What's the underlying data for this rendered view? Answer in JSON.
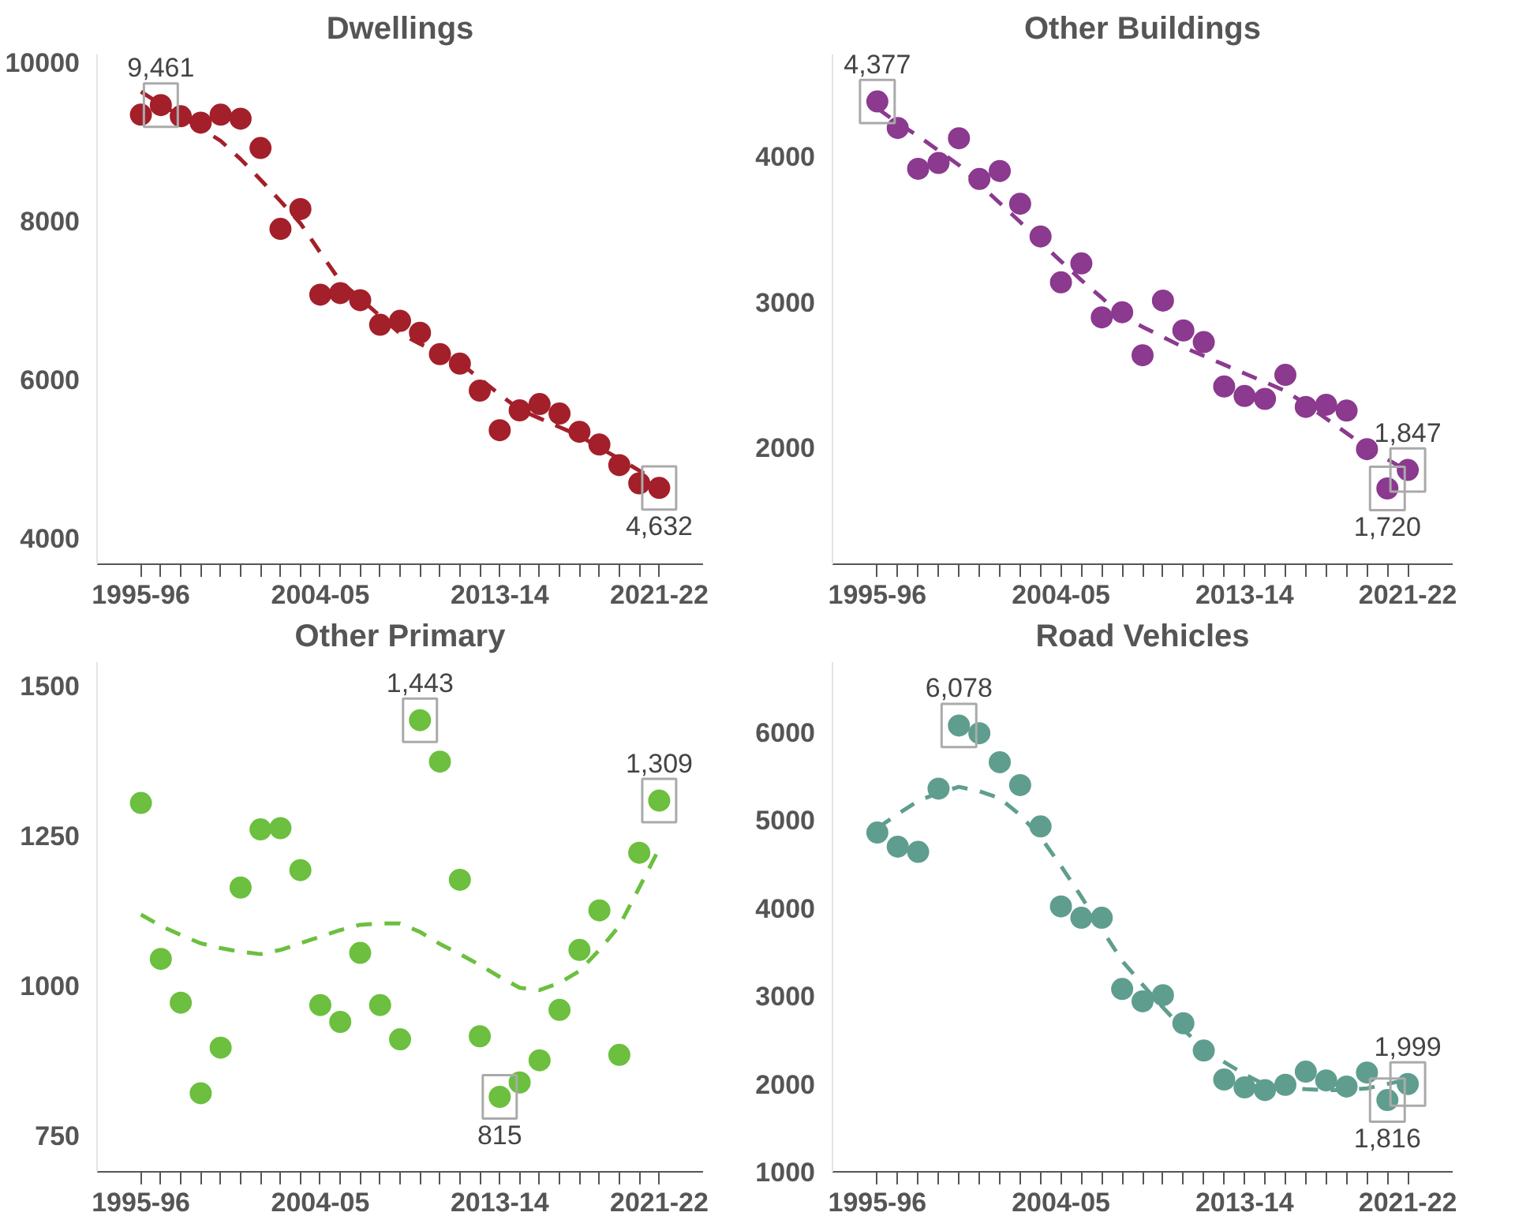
{
  "chart_data": [
    {
      "type": "scatter",
      "title": "Dwellings",
      "categories": [
        "1995-96",
        null,
        null,
        null,
        null,
        null,
        null,
        null,
        null,
        "2004-05",
        null,
        null,
        null,
        null,
        null,
        null,
        null,
        null,
        "2013-14",
        null,
        null,
        null,
        null,
        null,
        null,
        null,
        "2021-22"
      ],
      "ylim": [
        3670,
        10100
      ],
      "yticks": [
        4000,
        6000,
        8000,
        10000
      ],
      "grid": false,
      "marker": "circle",
      "series": [
        {
          "color": "#a3202a",
          "values": [
            9340,
            9461,
            9320,
            9240,
            9340,
            9290,
            8920,
            7900,
            8150,
            7070,
            7090,
            7000,
            6690,
            6740,
            6590,
            6320,
            6200,
            5860,
            5360,
            5610,
            5690,
            5570,
            5340,
            5180,
            4920,
            4690,
            4632
          ]
        },
        {
          "type": "line",
          "line_style": "dashed",
          "marker": "none",
          "color": "#a3202a",
          "values": [
            9630,
            9470,
            9320,
            9170,
            9010,
            8780,
            8520,
            8250,
            7970,
            7600,
            7240,
            7020,
            6800,
            6580,
            6450,
            6330,
            6210,
            6010,
            5810,
            5620,
            5510,
            5400,
            5290,
            5140,
            5000,
            4850,
            4700
          ]
        }
      ],
      "annotations": [
        {
          "text": "9,461",
          "y": 9461
        },
        {
          "text": "4,632",
          "x": "2021-22",
          "y": 4632
        }
      ]
    },
    {
      "type": "scatter",
      "title": "Other Buildings",
      "categories": [
        "1995-96",
        null,
        null,
        null,
        null,
        null,
        null,
        null,
        null,
        "2004-05",
        null,
        null,
        null,
        null,
        null,
        null,
        null,
        null,
        "2013-14",
        null,
        null,
        null,
        null,
        null,
        null,
        null,
        "2021-22"
      ],
      "ylim": [
        1200,
        4700
      ],
      "yticks": [
        2000,
        3000,
        4000
      ],
      "grid": false,
      "marker": "circle",
      "series": [
        {
          "color": "#8b3a8f",
          "values": [
            4377,
            4195,
            3915,
            3955,
            4125,
            3845,
            3900,
            3675,
            3450,
            3135,
            3265,
            2895,
            2930,
            2635,
            3010,
            2805,
            2725,
            2420,
            2355,
            2335,
            2500,
            2280,
            2295,
            2255,
            1990,
            1720,
            1847
          ]
        },
        {
          "type": "line",
          "line_style": "dashed",
          "marker": "none",
          "color": "#8b3a8f",
          "values": [
            4330,
            4230,
            4140,
            4040,
            3940,
            3810,
            3680,
            3550,
            3410,
            3280,
            3150,
            3030,
            2900,
            2830,
            2760,
            2690,
            2630,
            2570,
            2510,
            2450,
            2390,
            2300,
            2200,
            2100,
            2000,
            1920,
            1840
          ]
        }
      ],
      "annotations": [
        {
          "text": "4,377",
          "x": "1995-96",
          "y": 4377
        },
        {
          "text": "1,720",
          "y": 1720
        },
        {
          "text": "1,847",
          "x": "2021-22",
          "y": 1847
        }
      ]
    },
    {
      "type": "scatter",
      "title": "Other Primary",
      "categories": [
        "1995-96",
        null,
        null,
        null,
        null,
        null,
        null,
        null,
        null,
        "2004-05",
        null,
        null,
        null,
        null,
        null,
        null,
        null,
        null,
        "2013-14",
        null,
        null,
        null,
        null,
        null,
        null,
        null,
        "2021-22"
      ],
      "ylim": [
        690,
        1540
      ],
      "yticks": [
        750,
        1000,
        1250,
        1500
      ],
      "grid": false,
      "marker": "circle",
      "series": [
        {
          "color": "#6cbf3f",
          "values": [
            1305,
            1045,
            972,
            821,
            897,
            1164,
            1261,
            1263,
            1193,
            968,
            940,
            1055,
            968,
            911,
            1443,
            1374,
            1177,
            916,
            815,
            839,
            876,
            960,
            1060,
            1126,
            885,
            1222,
            1309
          ]
        },
        {
          "type": "line",
          "line_style": "dashed",
          "marker": "none",
          "color": "#6cbf3f",
          "values": [
            1119,
            1100,
            1085,
            1071,
            1063,
            1057,
            1053,
            1060,
            1071,
            1082,
            1093,
            1102,
            1104,
            1104,
            1090,
            1070,
            1053,
            1035,
            1015,
            997,
            993,
            1005,
            1025,
            1060,
            1100,
            1164,
            1229
          ]
        }
      ],
      "annotations": [
        {
          "text": "1,443",
          "y": 1443
        },
        {
          "text": "815",
          "x": "2013-14",
          "y": 815
        },
        {
          "text": "1,309",
          "x": "2021-22",
          "y": 1309
        }
      ]
    },
    {
      "type": "scatter",
      "title": "Road Vehicles",
      "categories": [
        "1995-96",
        null,
        null,
        null,
        null,
        null,
        null,
        null,
        null,
        "2004-05",
        null,
        null,
        null,
        null,
        null,
        null,
        null,
        null,
        "2013-14",
        null,
        null,
        null,
        null,
        null,
        null,
        null,
        "2021-22"
      ],
      "ylim": [
        1000,
        6800
      ],
      "yticks": [
        1000,
        2000,
        3000,
        4000,
        5000,
        6000
      ],
      "grid": false,
      "marker": "circle",
      "series": [
        {
          "color": "#5f9e8f",
          "values": [
            4860,
            4700,
            4640,
            5360,
            6078,
            5990,
            5660,
            5400,
            4930,
            4020,
            3890,
            3890,
            3080,
            2940,
            3010,
            2690,
            2380,
            2050,
            1960,
            1930,
            1990,
            2140,
            2040,
            1970,
            2130,
            1816,
            1999
          ]
        },
        {
          "type": "line",
          "line_style": "dashed",
          "marker": "none",
          "color": "#5f9e8f",
          "values": [
            4910,
            5070,
            5220,
            5310,
            5380,
            5330,
            5250,
            5060,
            4810,
            4480,
            4130,
            3760,
            3400,
            3130,
            2870,
            2620,
            2400,
            2250,
            2110,
            1990,
            1960,
            1940,
            1930,
            1930,
            1950,
            2000,
            2050
          ]
        }
      ],
      "annotations": [
        {
          "text": "6,078",
          "y": 6078
        },
        {
          "text": "1,816",
          "y": 1816
        },
        {
          "text": "1,999",
          "x": "2021-22",
          "y": 1999
        }
      ]
    }
  ]
}
